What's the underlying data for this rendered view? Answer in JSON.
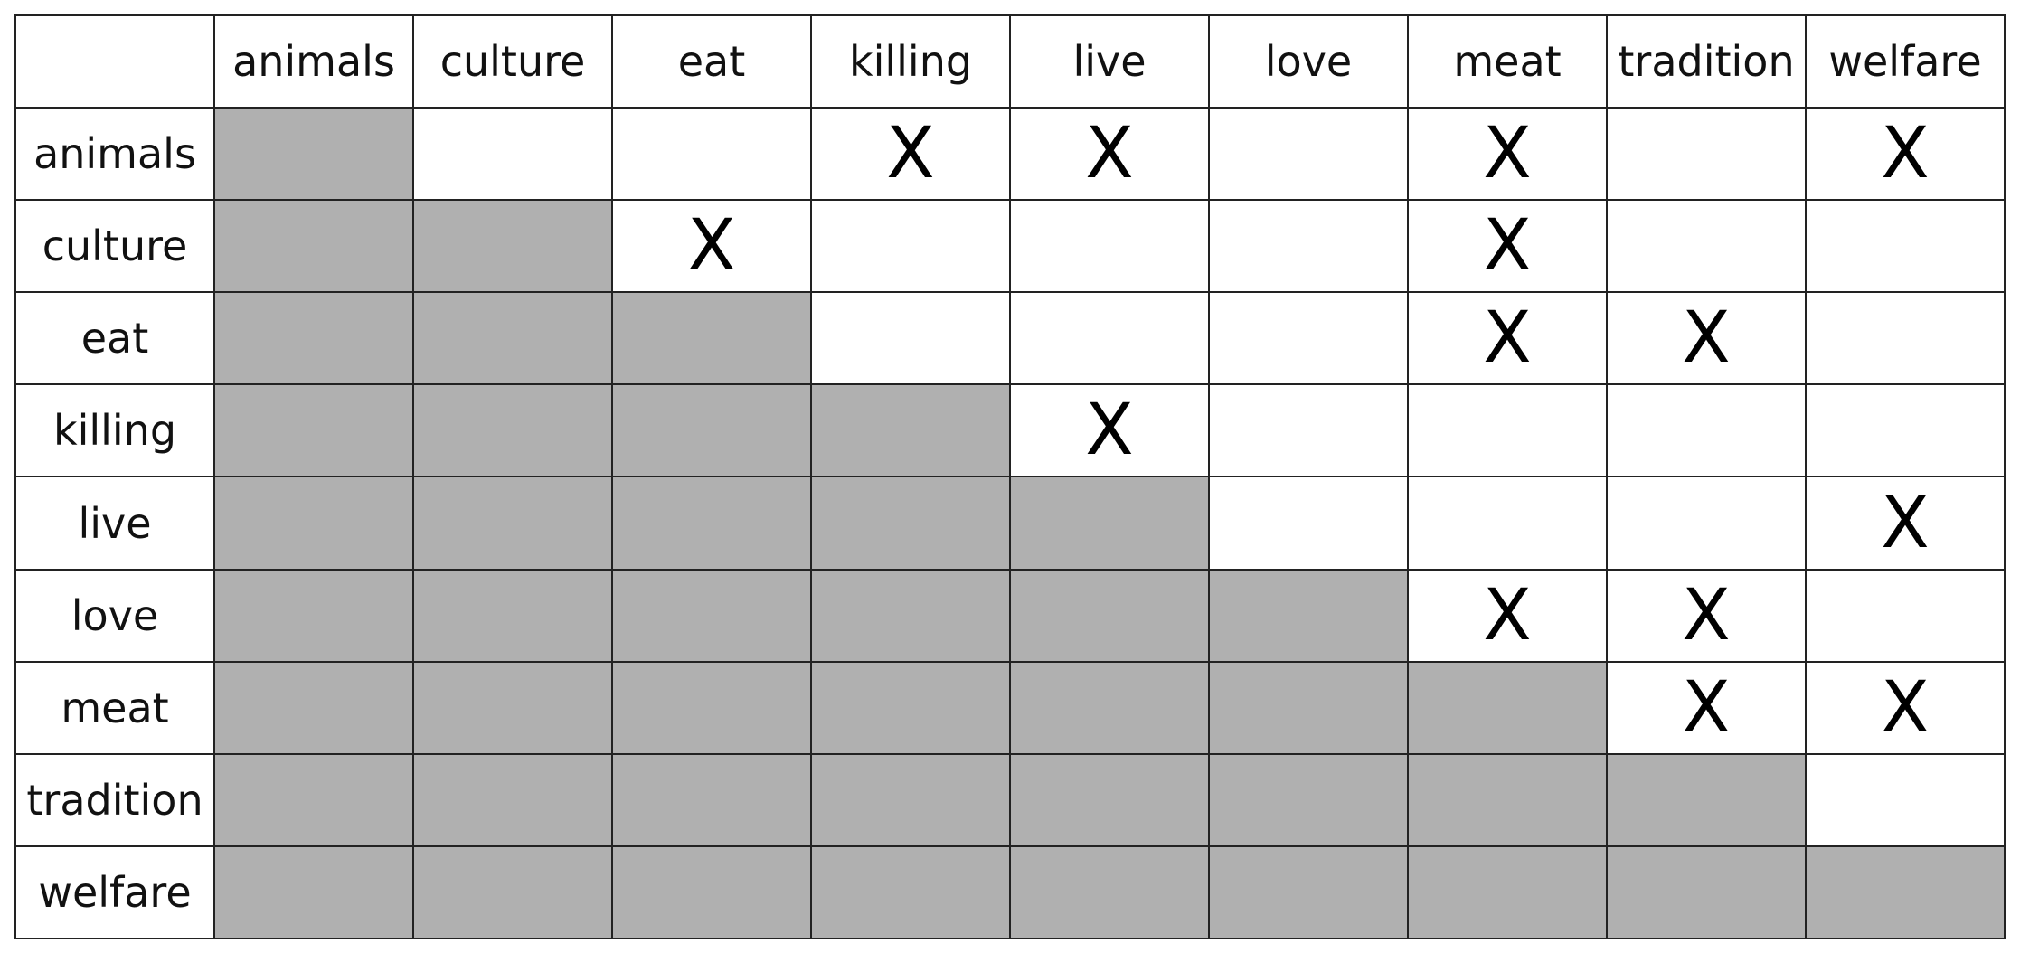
{
  "terms": [
    "animals",
    "culture",
    "eat",
    "killing",
    "live",
    "love",
    "meat",
    "tradition",
    "welfare"
  ],
  "mark_symbol": "X",
  "colors": {
    "shaded": "#b0b0b0",
    "open": "#ffffff",
    "grid": "#222222",
    "text": "#111111"
  },
  "marked_pairs": [
    [
      "animals",
      "killing"
    ],
    [
      "animals",
      "live"
    ],
    [
      "animals",
      "meat"
    ],
    [
      "animals",
      "welfare"
    ],
    [
      "culture",
      "eat"
    ],
    [
      "culture",
      "meat"
    ],
    [
      "eat",
      "meat"
    ],
    [
      "eat",
      "tradition"
    ],
    [
      "killing",
      "live"
    ],
    [
      "live",
      "welfare"
    ],
    [
      "love",
      "meat"
    ],
    [
      "love",
      "tradition"
    ],
    [
      "meat",
      "tradition"
    ],
    [
      "meat",
      "welfare"
    ]
  ]
}
